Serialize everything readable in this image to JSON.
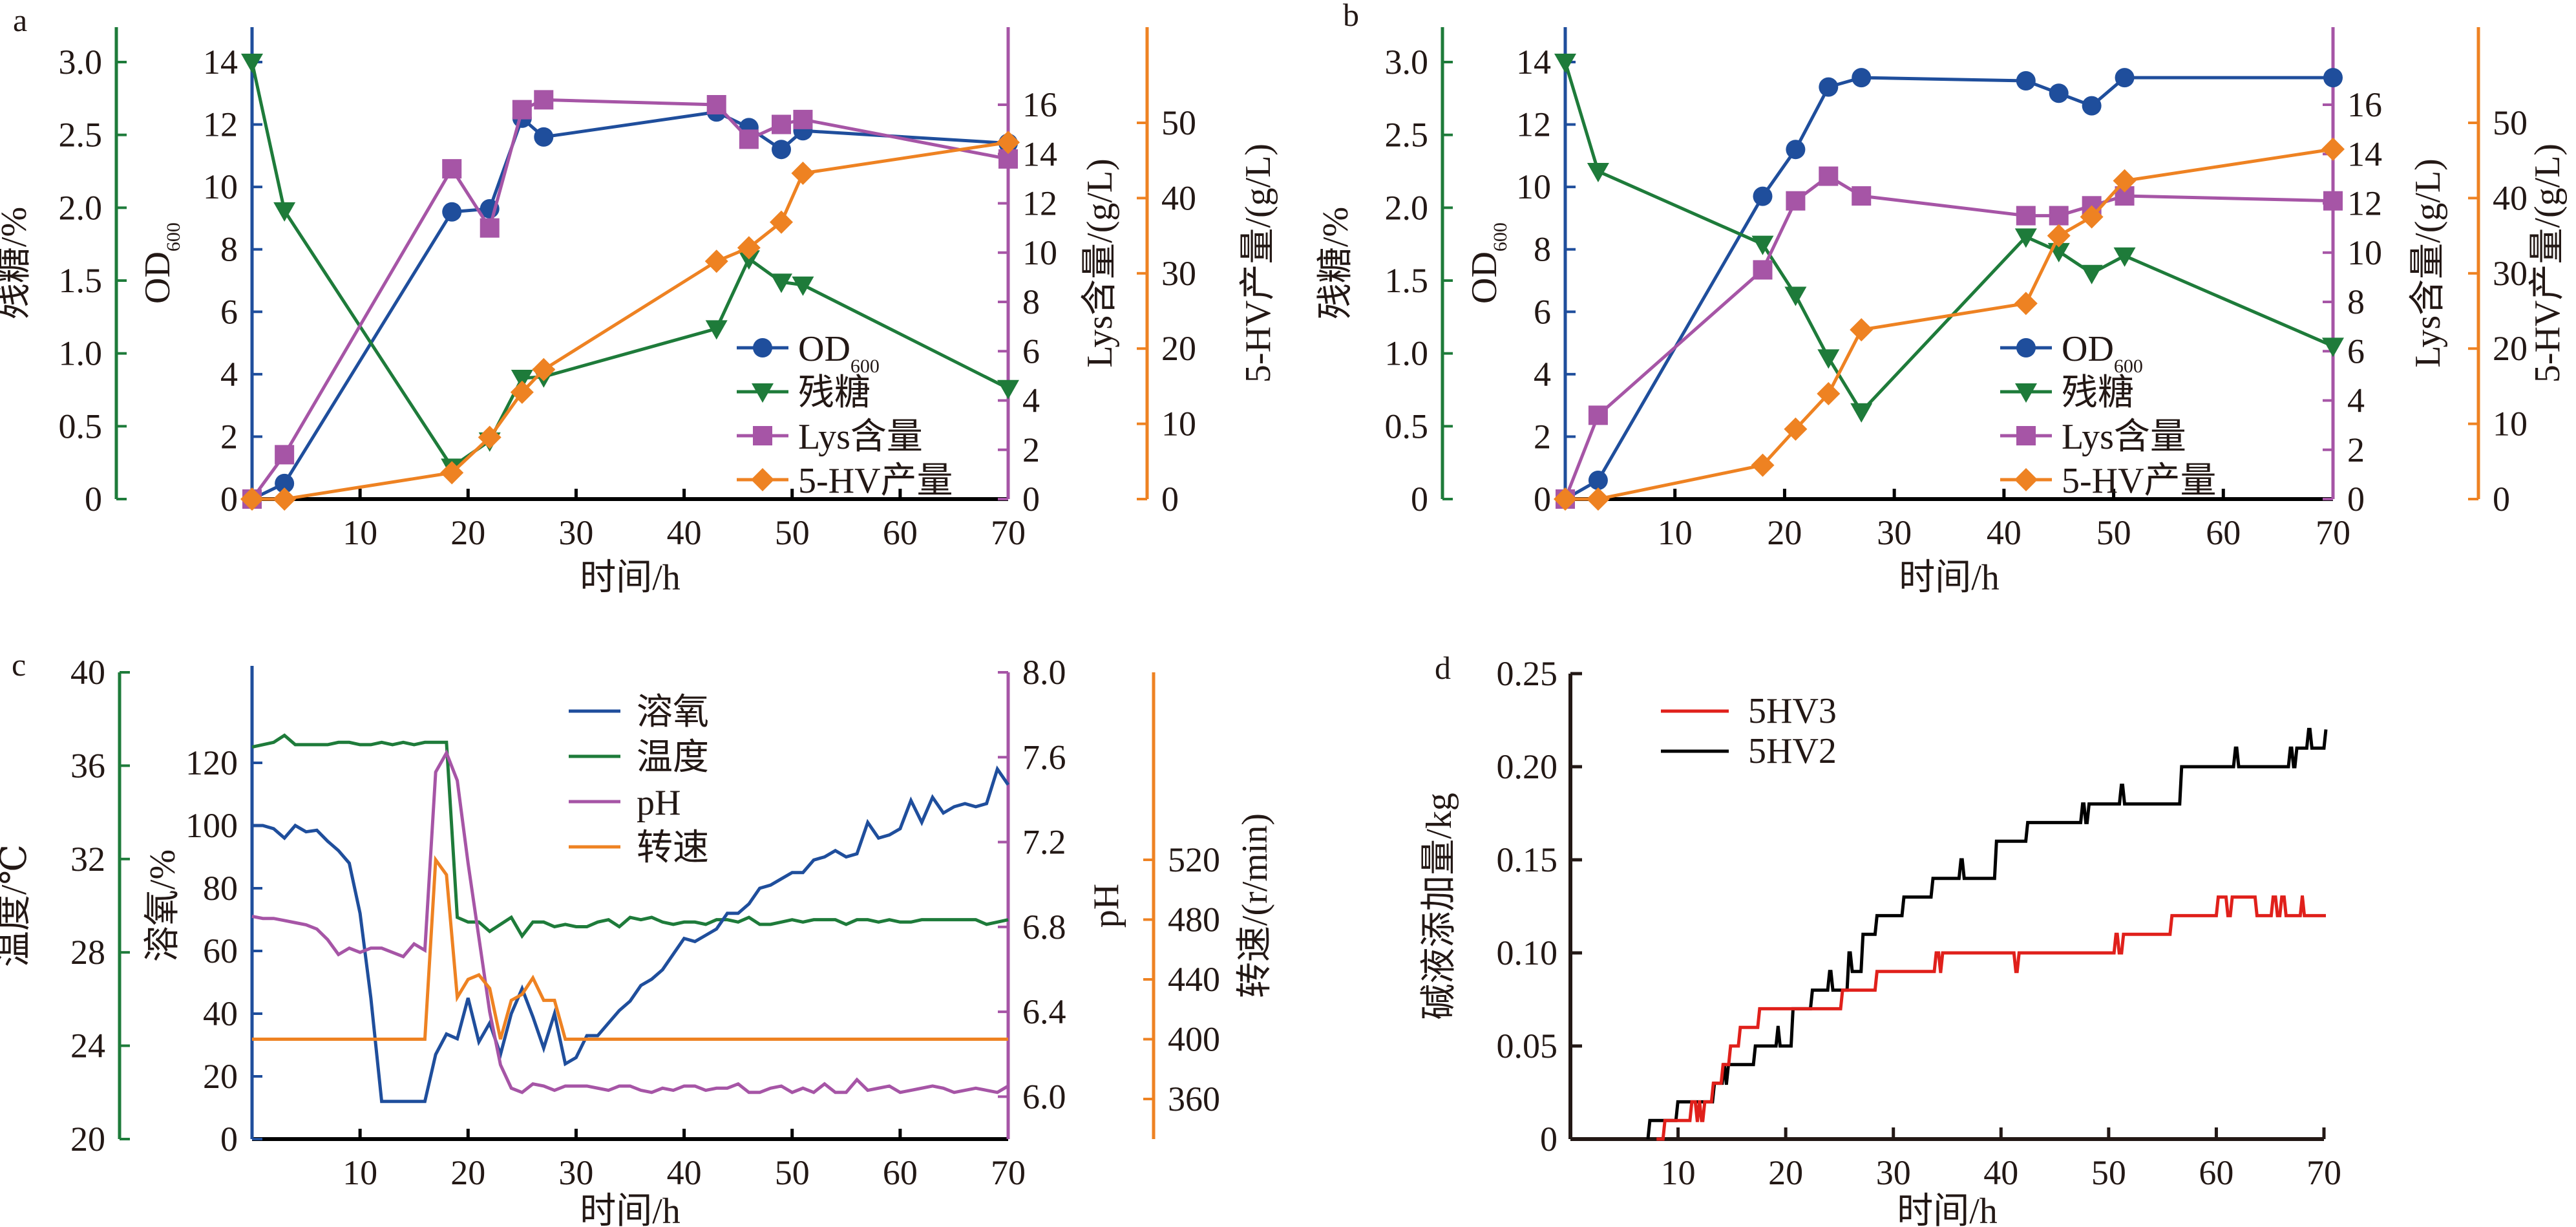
{
  "chart_data": [
    {
      "panel": "a",
      "type": "line",
      "xlabel": "时间/h",
      "xlim": [
        0,
        70
      ],
      "xticks": [
        10,
        20,
        30,
        40,
        50,
        60,
        70
      ],
      "axes": {
        "sugar": {
          "label": "残糖/%",
          "lim": [
            0,
            3.0
          ],
          "ticks": [
            "0",
            "0.5",
            "1.0",
            "1.5",
            "2.0",
            "2.5",
            "3.0"
          ],
          "color": "#1e7b3a"
        },
        "od": {
          "label": "OD",
          "label_sub": "600",
          "lim": [
            0,
            14
          ],
          "ticks": [
            "0",
            "2",
            "4",
            "6",
            "8",
            "10",
            "12",
            "14"
          ],
          "color": "#1f4e9c"
        },
        "lys": {
          "label": "Lys含量/(g/L)",
          "lim": [
            0,
            16
          ],
          "ticks": [
            "0",
            "2",
            "4",
            "6",
            "8",
            "10",
            "12",
            "14",
            "16"
          ],
          "color": "#a655a6"
        },
        "hv": {
          "label": "5-HV产量/(g/L)",
          "lim": [
            0,
            50
          ],
          "ticks": [
            "0",
            "10",
            "20",
            "30",
            "40",
            "50"
          ],
          "color": "#ee8222"
        }
      },
      "series": [
        {
          "name": "OD",
          "name_sub": "600",
          "axis": "od",
          "marker": "circle",
          "color": "#1f4e9c",
          "x": [
            0,
            3,
            18.5,
            22,
            25,
            27,
            43,
            46,
            49,
            51,
            70
          ],
          "y": [
            0,
            0.5,
            9.2,
            9.3,
            12.2,
            11.6,
            12.4,
            11.9,
            11.2,
            11.8,
            11.4
          ]
        },
        {
          "name": "残糖",
          "axis": "sugar",
          "marker": "triangle-down",
          "color": "#1e7b3a",
          "x": [
            0,
            3,
            18.5,
            22,
            25,
            27,
            43,
            46,
            49,
            51,
            70
          ],
          "y": [
            3.0,
            1.98,
            0.22,
            0.4,
            0.83,
            0.84,
            1.17,
            1.65,
            1.49,
            1.47,
            0.76
          ]
        },
        {
          "name": "Lys含量",
          "axis": "lys",
          "marker": "square",
          "color": "#a655a6",
          "x": [
            0,
            3,
            18.5,
            22,
            25,
            27,
            43,
            46,
            49,
            51,
            70
          ],
          "y": [
            0,
            1.8,
            13.4,
            11.0,
            15.8,
            16.2,
            16.0,
            14.6,
            15.2,
            15.4,
            13.8
          ]
        },
        {
          "name": "5-HV产量",
          "axis": "hv",
          "marker": "diamond",
          "color": "#ee8222",
          "x": [
            0,
            3,
            18.5,
            22,
            25,
            27,
            43,
            46,
            49,
            51,
            70
          ],
          "y": [
            0,
            0,
            3.5,
            8.2,
            14.2,
            17.2,
            31.6,
            33.4,
            36.8,
            43.3,
            47.4
          ]
        }
      ],
      "legend": "center-right"
    },
    {
      "panel": "b",
      "type": "line",
      "xlabel": "时间/h",
      "xlim": [
        0,
        70
      ],
      "xticks": [
        10,
        20,
        30,
        40,
        50,
        60,
        70
      ],
      "axes": {
        "sugar": {
          "label": "残糖/%",
          "lim": [
            0,
            3.0
          ],
          "ticks": [
            "0",
            "0.5",
            "1.0",
            "1.5",
            "2.0",
            "2.5",
            "3.0"
          ],
          "color": "#1e7b3a"
        },
        "od": {
          "label": "OD",
          "label_sub": "600",
          "lim": [
            0,
            14
          ],
          "ticks": [
            "0",
            "2",
            "4",
            "6",
            "8",
            "10",
            "12",
            "14"
          ],
          "color": "#1f4e9c"
        },
        "lys": {
          "label": "Lys含量/(g/L)",
          "lim": [
            0,
            16
          ],
          "ticks": [
            "0",
            "2",
            "4",
            "6",
            "8",
            "10",
            "12",
            "14",
            "16"
          ],
          "color": "#a655a6"
        },
        "hv": {
          "label": "5-HV产量/(g/L)",
          "lim": [
            0,
            50
          ],
          "ticks": [
            "0",
            "10",
            "20",
            "30",
            "40",
            "50"
          ],
          "color": "#ee8222"
        }
      },
      "series": [
        {
          "name": "OD",
          "name_sub": "600",
          "axis": "od",
          "marker": "circle",
          "color": "#1f4e9c",
          "x": [
            0,
            3,
            18,
            21,
            24,
            27,
            42,
            45,
            48,
            51,
            70
          ],
          "y": [
            0,
            0.6,
            9.7,
            11.2,
            13.2,
            13.5,
            13.4,
            13.0,
            12.6,
            13.5,
            13.5
          ]
        },
        {
          "name": "残糖",
          "axis": "sugar",
          "marker": "triangle-down",
          "color": "#1e7b3a",
          "x": [
            0,
            3,
            18,
            21,
            24,
            27,
            42,
            45,
            48,
            51,
            70
          ],
          "y": [
            3.0,
            2.25,
            1.75,
            1.4,
            0.97,
            0.6,
            1.8,
            1.7,
            1.55,
            1.67,
            1.05
          ]
        },
        {
          "name": "Lys含量",
          "axis": "lys",
          "marker": "square",
          "color": "#a655a6",
          "x": [
            0,
            3,
            18,
            21,
            24,
            27,
            42,
            45,
            48,
            51,
            70
          ],
          "y": [
            0,
            3.4,
            9.3,
            12.1,
            13.1,
            12.3,
            11.5,
            11.5,
            11.9,
            12.3,
            12.1
          ]
        },
        {
          "name": "5-HV产量",
          "axis": "hv",
          "marker": "diamond",
          "color": "#ee8222",
          "x": [
            0,
            3,
            18,
            21,
            24,
            27,
            42,
            45,
            48,
            51,
            70
          ],
          "y": [
            0,
            0,
            4.5,
            9.3,
            14.0,
            22.5,
            26.0,
            35.0,
            37.5,
            42.3,
            46.5
          ]
        }
      ],
      "legend": "center-right"
    },
    {
      "panel": "c",
      "type": "line",
      "xlabel": "时间/h",
      "xlim": [
        0,
        70
      ],
      "xticks": [
        10,
        20,
        30,
        40,
        50,
        60,
        70
      ],
      "axes": {
        "temp": {
          "label": "温度/℃",
          "lim": [
            20,
            40
          ],
          "ticks": [
            "20",
            "24",
            "28",
            "32",
            "36",
            "40"
          ],
          "color": "#1e7b3a"
        },
        "do": {
          "label": "溶氧/%",
          "lim": [
            0,
            130
          ],
          "ticks": [
            "0",
            "20",
            "40",
            "60",
            "80",
            "100",
            "120"
          ],
          "tickvals": [
            0,
            20,
            40,
            60,
            80,
            100,
            120
          ],
          "color": "#1f4e9c"
        },
        "ph": {
          "label": "pH",
          "lim": [
            5.8,
            8.0
          ],
          "ticks": [
            "6.0",
            "6.4",
            "6.8",
            "7.2",
            "7.6",
            "8.0"
          ],
          "tickvals": [
            6.0,
            6.4,
            6.8,
            7.2,
            7.6,
            8.0
          ],
          "color": "#a655a6"
        },
        "rpm": {
          "label": "转速/(r/min)",
          "lim": [
            340,
            540
          ],
          "ticks": [
            "360",
            "400",
            "440",
            "480",
            "520"
          ],
          "tickvals": [
            360,
            400,
            440,
            480,
            520
          ],
          "color": "#ee8222"
        }
      },
      "series": [
        {
          "name": "溶氧",
          "axis": "do",
          "color": "#1f4e9c",
          "y": [
            100,
            100,
            99,
            96,
            100,
            98,
            98.5,
            95,
            92,
            88,
            72,
            45,
            12,
            12,
            12,
            12,
            12,
            27,
            33.5,
            32,
            45,
            31,
            37,
            27,
            40,
            48,
            39,
            29,
            40,
            24,
            26,
            33,
            33,
            37,
            41,
            44,
            49,
            51,
            54,
            59,
            64,
            63,
            65,
            67,
            72,
            72,
            75,
            80,
            81,
            83,
            85,
            85,
            89,
            90,
            92,
            90,
            91,
            101,
            96,
            97,
            99,
            108,
            101,
            109,
            104,
            106,
            107,
            106,
            107,
            118,
            113
          ]
        },
        {
          "name": "温度",
          "axis": "temp",
          "color": "#1e7b3a",
          "y": [
            36.8,
            36.9,
            37.0,
            37.3,
            36.9,
            36.9,
            36.9,
            36.9,
            37.0,
            37.0,
            36.9,
            36.9,
            37.0,
            36.9,
            37.0,
            36.9,
            37.0,
            37.0,
            37.0,
            29.5,
            29.3,
            29.3,
            28.9,
            29.2,
            29.5,
            28.7,
            29.3,
            29.3,
            29.1,
            29.2,
            29.1,
            29.1,
            29.3,
            29.4,
            29.1,
            29.5,
            29.4,
            29.5,
            29.3,
            29.2,
            29.3,
            29.3,
            29.2,
            29.4,
            29.4,
            29.3,
            29.5,
            29.2,
            29.2,
            29.3,
            29.4,
            29.3,
            29.4,
            29.4,
            29.4,
            29.2,
            29.4,
            29.4,
            29.3,
            29.4,
            29.3,
            29.3,
            29.4,
            29.4,
            29.4,
            29.4,
            29.4,
            29.4,
            29.2,
            29.3,
            29.4
          ]
        },
        {
          "name": "pH",
          "axis": "ph",
          "color": "#a655a6",
          "y": [
            6.85,
            6.84,
            6.84,
            6.83,
            6.82,
            6.81,
            6.79,
            6.74,
            6.67,
            6.7,
            6.68,
            6.7,
            6.7,
            6.68,
            6.66,
            6.72,
            6.69,
            7.53,
            7.62,
            7.49,
            7.1,
            6.75,
            6.4,
            6.15,
            6.04,
            6.02,
            6.06,
            6.05,
            6.03,
            6.05,
            6.05,
            6.05,
            6.04,
            6.03,
            6.05,
            6.05,
            6.03,
            6.02,
            6.04,
            6.03,
            6.05,
            6.05,
            6.03,
            6.04,
            6.04,
            6.06,
            6.02,
            6.02,
            6.04,
            6.05,
            6.02,
            6.04,
            6.02,
            6.06,
            6.02,
            6.02,
            6.08,
            6.03,
            6.04,
            6.05,
            6.02,
            6.03,
            6.04,
            6.05,
            6.04,
            6.02,
            6.03,
            6.04,
            6.03,
            6.02,
            6.05
          ]
        },
        {
          "name": "转速",
          "axis": "rpm",
          "color": "#ee8222",
          "y": [
            400,
            400,
            400,
            400,
            400,
            400,
            400,
            400,
            400,
            400,
            400,
            400,
            400,
            400,
            400,
            400,
            400,
            520,
            510,
            428,
            440,
            443,
            434,
            400,
            426,
            430,
            441,
            426,
            426,
            400,
            400,
            400,
            400,
            400,
            400,
            400,
            400,
            400,
            400,
            400,
            400,
            400,
            400,
            400,
            400,
            400,
            400,
            400,
            400,
            400,
            400,
            400,
            400,
            400,
            400,
            400,
            400,
            400,
            400,
            400,
            400,
            400,
            400,
            400,
            400,
            400,
            400,
            400,
            400,
            400,
            400
          ]
        }
      ],
      "x_step": 1,
      "legend": "top-center"
    },
    {
      "panel": "d",
      "type": "line",
      "xlabel": "时间/h",
      "ylabel": "碱液添加量/kg",
      "xlim": [
        0,
        70
      ],
      "ylim": [
        0,
        0.25
      ],
      "xticks": [
        10,
        20,
        30,
        40,
        50,
        60,
        70
      ],
      "yticks": [
        "0",
        "0.05",
        "0.10",
        "0.15",
        "0.20",
        "0.25"
      ],
      "ytickvals": [
        0,
        0.05,
        0.1,
        0.15,
        0.2,
        0.25
      ],
      "series": [
        {
          "name": "5HV3",
          "color": "#e0201b",
          "step": true,
          "x": [
            8.0,
            8.6,
            11.1,
            11.6,
            11.8,
            12.0,
            12.3,
            13.1,
            14.0,
            14.7,
            15.6,
            17.4,
            25.1,
            28.3,
            33.8,
            34.2,
            34.4,
            41.2,
            41.5,
            41.8,
            50.5,
            50.8,
            51.2,
            51.5,
            55.7,
            60.0,
            60.9,
            61.3,
            63.6,
            65.1,
            65.5,
            65.9,
            66.3,
            67.8,
            68.0,
            70.0
          ],
          "y": [
            0.0,
            0.01,
            0.02,
            0.01,
            0.02,
            0.01,
            0.02,
            0.03,
            0.04,
            0.05,
            0.06,
            0.07,
            0.08,
            0.09,
            0.1,
            0.09,
            0.1,
            0.09,
            0.1,
            0.1,
            0.11,
            0.1,
            0.11,
            0.11,
            0.12,
            0.13,
            0.12,
            0.13,
            0.12,
            0.13,
            0.12,
            0.13,
            0.12,
            0.13,
            0.12,
            0.12
          ]
        },
        {
          "name": "5HV2",
          "color": "#000000",
          "step": true,
          "x": [
            7.2,
            9.8,
            13.2,
            14.1,
            14.3,
            14.5,
            17.0,
            19.1,
            19.3,
            20.5,
            22.3,
            23.9,
            24.2,
            25.7,
            26.0,
            27.0,
            28.3,
            30.8,
            33.5,
            36.1,
            36.4,
            39.4,
            42.3,
            47.4,
            47.7,
            48.0,
            51.0,
            51.3,
            56.6,
            61.6,
            61.9,
            66.7,
            67.0,
            67.3,
            68.4,
            68.7,
            70.0
          ],
          "y": [
            0.01,
            0.02,
            0.03,
            0.04,
            0.03,
            0.04,
            0.05,
            0.06,
            0.05,
            0.07,
            0.08,
            0.09,
            0.08,
            0.1,
            0.09,
            0.11,
            0.12,
            0.13,
            0.14,
            0.15,
            0.14,
            0.16,
            0.17,
            0.18,
            0.17,
            0.18,
            0.19,
            0.18,
            0.2,
            0.21,
            0.2,
            0.21,
            0.2,
            0.21,
            0.22,
            0.21,
            0.22
          ]
        }
      ],
      "legend": "top-left"
    }
  ]
}
